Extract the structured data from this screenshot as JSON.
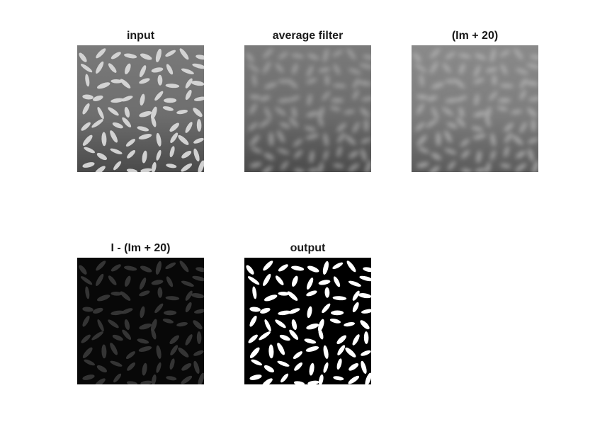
{
  "figure": {
    "panels": [
      {
        "id": "input",
        "title": "input",
        "render": "input"
      },
      {
        "id": "average-filter",
        "title": "average filter",
        "render": "blur"
      },
      {
        "id": "im-plus-20",
        "title": "(Im + 20)",
        "render": "blur-light"
      },
      {
        "id": "difference",
        "title": "I - (Im + 20)",
        "render": "diff"
      },
      {
        "id": "output",
        "title": "output",
        "render": "binary"
      }
    ]
  }
}
